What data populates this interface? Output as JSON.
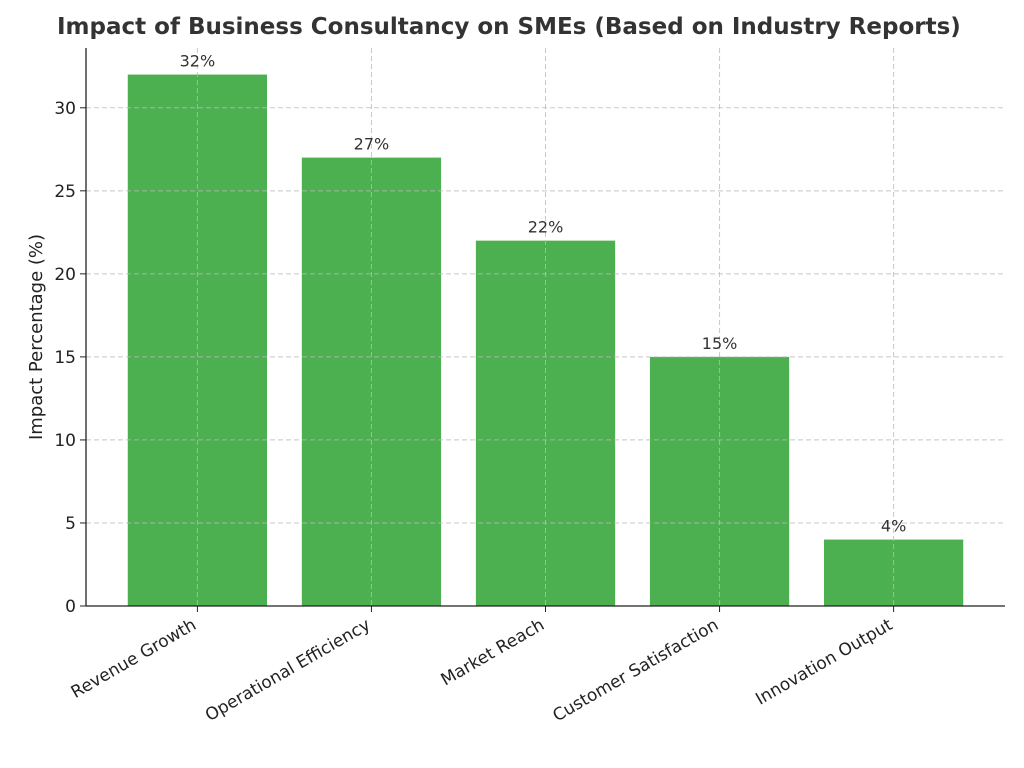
{
  "chart_data": {
    "type": "bar",
    "title": "Impact of Business Consultancy on SMEs (Based on Industry Reports)",
    "xlabel": "",
    "ylabel": "Impact Percentage (%)",
    "categories": [
      "Revenue Growth",
      "Operational Efficiency",
      "Market Reach",
      "Customer Satisfaction",
      "Innovation Output"
    ],
    "values": [
      32,
      27,
      22,
      15,
      4
    ],
    "data_labels": [
      "32%",
      "27%",
      "22%",
      "15%",
      "4%"
    ],
    "ylim": [
      0,
      33.6
    ],
    "yticks": [
      0,
      5,
      10,
      15,
      20,
      25,
      30
    ],
    "grid": true,
    "bar_color": "#4CAF50"
  }
}
